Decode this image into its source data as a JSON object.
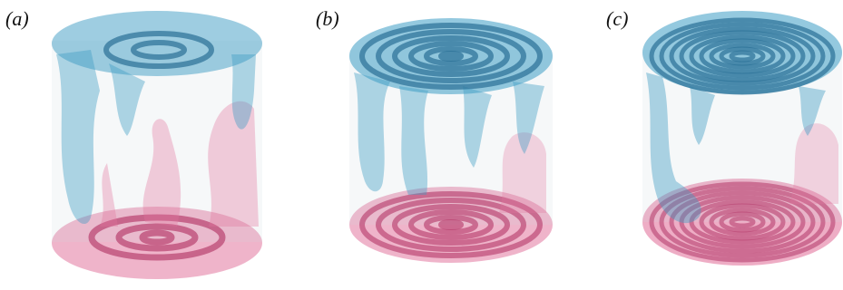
{
  "panels": [
    {
      "label": "(a)",
      "rings_top": 2,
      "rings_bottom": 3
    },
    {
      "label": "(b)",
      "rings_top": 6,
      "rings_bottom": 6
    },
    {
      "label": "(c)",
      "rings_top": 9,
      "rings_bottom": 9
    }
  ],
  "colors": {
    "cold": "#3d9cc4",
    "cold_dark": "#2a6f95",
    "hot": "#e2769f",
    "hot_dark": "#b8416f",
    "wall": "#cfd6e0"
  }
}
